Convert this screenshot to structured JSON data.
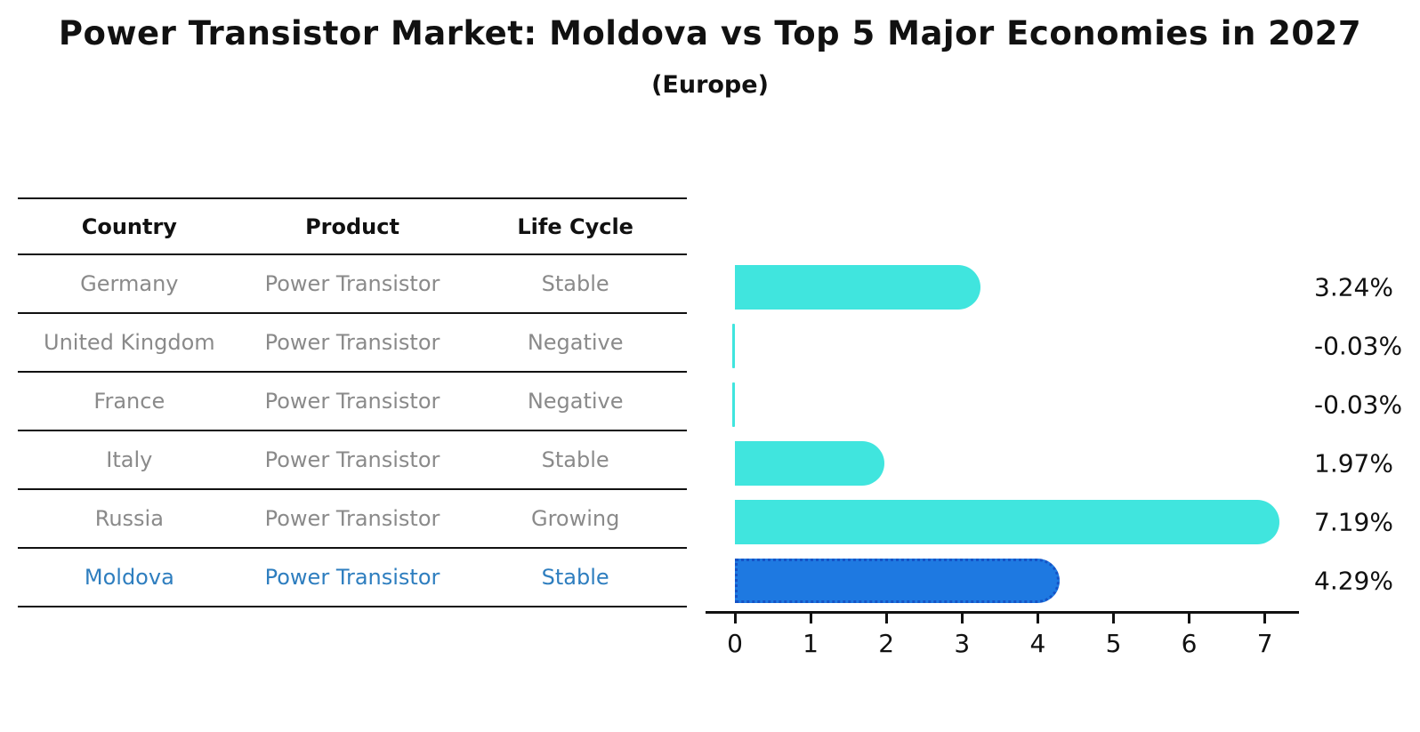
{
  "title": "Power Transistor Market: Moldova vs Top 5 Major Economies in 2027",
  "subtitle": "(Europe)",
  "table": {
    "headers": [
      "Country",
      "Product",
      "Life Cycle"
    ],
    "rows": [
      {
        "country": "Germany",
        "product": "Power Transistor",
        "life_cycle": "Stable",
        "highlight": false
      },
      {
        "country": "United Kingdom",
        "product": "Power Transistor",
        "life_cycle": "Negative",
        "highlight": false
      },
      {
        "country": "France",
        "product": "Power Transistor",
        "life_cycle": "Negative",
        "highlight": false
      },
      {
        "country": "Italy",
        "product": "Power Transistor",
        "life_cycle": "Stable",
        "highlight": false
      },
      {
        "country": "Russia",
        "product": "Power Transistor",
        "life_cycle": "Growing",
        "highlight": false
      },
      {
        "country": "Moldova",
        "product": "Power Transistor",
        "life_cycle": "Stable",
        "highlight": true
      }
    ]
  },
  "chart_data": {
    "type": "bar",
    "orientation": "horizontal",
    "title": "Power Transistor Market: Moldova vs Top 5 Major Economies in 2027 (Europe)",
    "categories": [
      "Germany",
      "United Kingdom",
      "France",
      "Italy",
      "Russia",
      "Moldova"
    ],
    "values": [
      3.24,
      -0.03,
      -0.03,
      1.97,
      7.19,
      4.29
    ],
    "value_labels": [
      "3.24%",
      "-0.03%",
      "-0.03%",
      "1.97%",
      "7.19%",
      "4.29%"
    ],
    "unit": "%",
    "x_ticks": [
      "0",
      "1",
      "2",
      "3",
      "4",
      "5",
      "6",
      "7"
    ],
    "xlim": [
      -0.4,
      7.9
    ],
    "grid": false,
    "legend": false,
    "highlight_index": 5,
    "bar_color": "#40E5DE",
    "highlight_bar_color": "#1E79E1",
    "highlight_bar_border": "#1553C6"
  },
  "colors": {
    "text_primary": "#111111",
    "table_text": "#8a8a8a",
    "highlight_text": "#2E7EBF",
    "line": "#111111"
  }
}
